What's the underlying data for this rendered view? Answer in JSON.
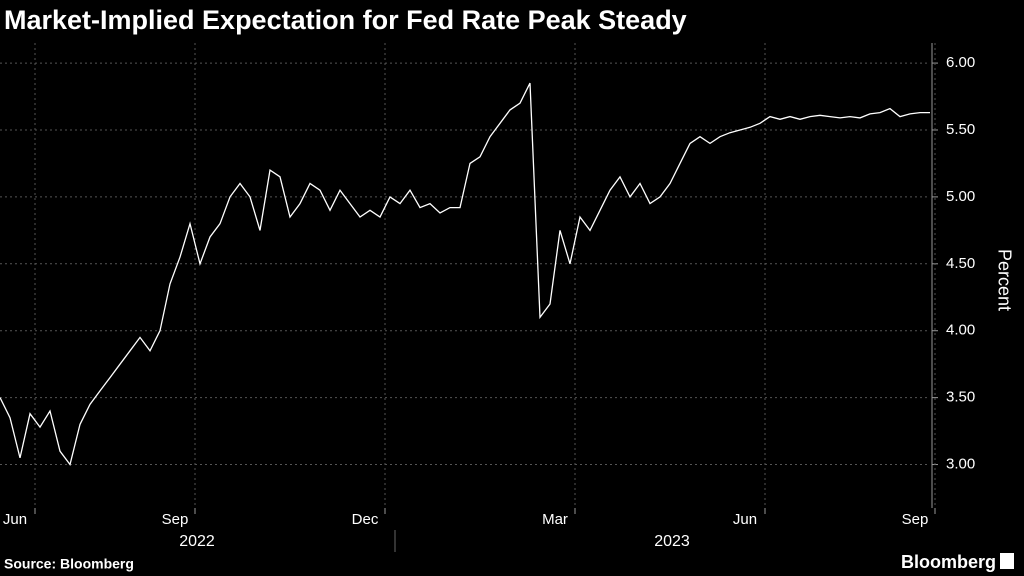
{
  "chart_data": {
    "type": "line",
    "title": "Market-Implied Expectation for Fed Rate Peak Steady",
    "y_label": "Percent",
    "source": "Source: Bloomberg",
    "brand": "Bloomberg",
    "year_labels": [
      "2022",
      "2023"
    ],
    "categories": [
      null,
      "Jun",
      null,
      null,
      null,
      null,
      null,
      null,
      null,
      null,
      null,
      null,
      null,
      null,
      null,
      null,
      null,
      "Sep",
      null,
      null,
      null,
      null,
      null,
      null,
      null,
      null,
      null,
      null,
      null,
      null,
      null,
      null,
      null,
      null,
      null,
      null,
      "Dec",
      null,
      null,
      null,
      null,
      null,
      null,
      null,
      null,
      null,
      null,
      null,
      null,
      null,
      null,
      null,
      null,
      null,
      null,
      "Mar",
      null,
      null,
      null,
      null,
      null,
      null,
      null,
      null,
      null,
      null,
      null,
      null,
      null,
      null,
      null,
      null,
      null,
      null,
      "Jun",
      null,
      null,
      null,
      null,
      null,
      null,
      null,
      null,
      null,
      null,
      null,
      null,
      null,
      null,
      null,
      null,
      "Sep",
      null,
      null
    ],
    "series": [
      {
        "name": "Fed rate peak",
        "color": "#ffffff",
        "values": [
          3.5,
          3.35,
          3.05,
          3.38,
          3.28,
          3.4,
          3.1,
          3.0,
          3.3,
          3.45,
          3.55,
          3.65,
          3.75,
          3.85,
          3.95,
          3.85,
          4.0,
          4.35,
          4.55,
          4.8,
          4.5,
          4.7,
          4.8,
          5.0,
          5.1,
          5.0,
          4.75,
          5.2,
          5.15,
          4.85,
          4.95,
          5.1,
          5.05,
          4.9,
          5.05,
          4.95,
          4.85,
          4.9,
          4.85,
          5.0,
          4.95,
          5.05,
          4.92,
          4.95,
          4.88,
          4.92,
          4.92,
          5.25,
          5.3,
          5.45,
          5.55,
          5.65,
          5.7,
          5.85,
          4.1,
          4.2,
          4.75,
          4.5,
          4.85,
          4.75,
          4.9,
          5.05,
          5.15,
          5.0,
          5.1,
          4.95,
          5.0,
          5.1,
          5.25,
          5.4,
          5.45,
          5.4,
          5.45,
          5.48,
          5.5,
          5.52,
          5.55,
          5.6,
          5.58,
          5.6,
          5.58,
          5.6,
          5.61,
          5.6,
          5.59,
          5.6,
          5.59,
          5.62,
          5.63,
          5.66,
          5.6,
          5.62,
          5.63,
          5.63
        ]
      }
    ],
    "ylim": [
      2.75,
      6.15
    ],
    "yticks": [
      {
        "value": 3,
        "label": "3.00"
      },
      {
        "value": 3.5,
        "label": "3.50"
      },
      {
        "value": 4,
        "label": "4.00"
      },
      {
        "value": 4.5,
        "label": "4.50"
      },
      {
        "value": 5,
        "label": "5.00"
      },
      {
        "value": 5.5,
        "label": "5.50"
      },
      {
        "value": 6,
        "label": "6.00"
      }
    ],
    "grid": true
  }
}
